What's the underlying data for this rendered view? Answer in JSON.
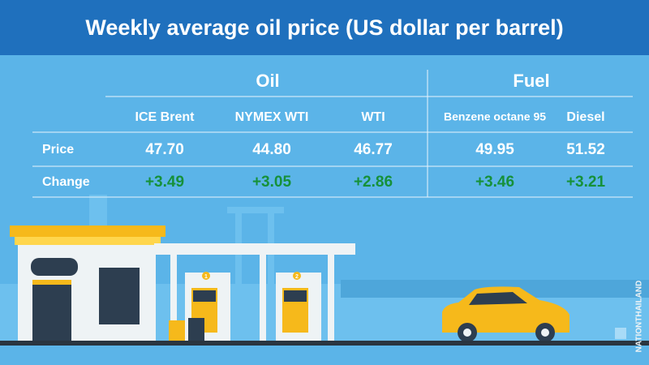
{
  "header": {
    "title": "Weekly average oil price (US dollar per barrel)"
  },
  "table": {
    "groups": [
      "Oil",
      "Fuel"
    ],
    "columns": [
      "ICE Brent",
      "NYMEX WTI",
      "WTI",
      "Benzene octane 95",
      "Diesel"
    ],
    "rows": [
      {
        "label": "Price",
        "cells": [
          "47.70",
          "44.80",
          "46.77",
          "49.95",
          "51.52"
        ]
      },
      {
        "label": "Change",
        "cells": [
          "+3.49",
          "+3.05",
          "+2.86",
          "+3.46",
          "+3.21"
        ]
      }
    ]
  },
  "pumps": [
    "1",
    "2"
  ],
  "watermark": "NATIONTHAILAND"
}
